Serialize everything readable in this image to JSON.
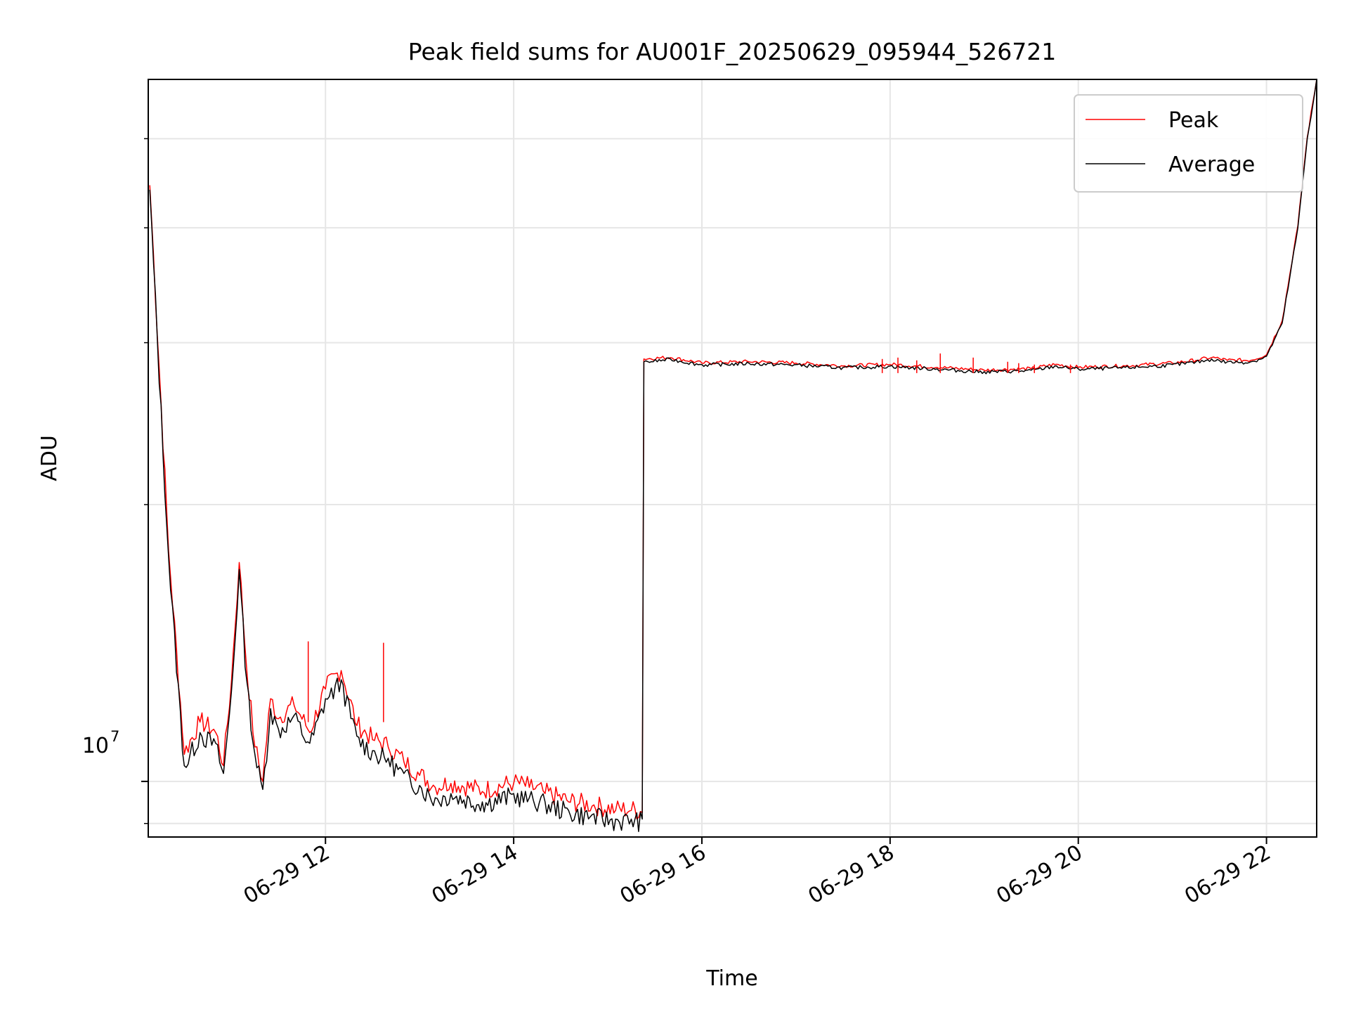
{
  "chart_data": {
    "type": "line",
    "title": "Peak field sums for AU001F_20250629_095944_526721",
    "xlabel": "Time",
    "ylabel": "ADU",
    "y_scale": "log",
    "xlim": [
      "2025-06-29 10:07",
      "2025-06-29 22:32"
    ],
    "ylim": [
      8700000,
      58000000
    ],
    "x_ticks": [
      "06-29 12",
      "06-29 14",
      "06-29 16",
      "06-29 18",
      "06-29 20",
      "06-29 22"
    ],
    "y_tick_label": {
      "base": "10",
      "exp": "7"
    },
    "grid": true,
    "legend": {
      "position": "top-right",
      "entries": [
        "Peak",
        "Average"
      ]
    },
    "colors": {
      "Peak": "#ff0000",
      "Average": "#000000",
      "grid": "#e6e6e6"
    },
    "series": [
      {
        "name": "Average",
        "x": [
          "2025-06-29 10:08",
          "2025-06-29 10:20",
          "2025-06-29 10:30",
          "2025-06-29 10:40",
          "2025-06-29 10:50",
          "2025-06-29 10:55",
          "2025-06-29 11:00",
          "2025-06-29 11:05",
          "2025-06-29 11:10",
          "2025-06-29 11:15",
          "2025-06-29 11:20",
          "2025-06-29 11:25",
          "2025-06-29 11:30",
          "2025-06-29 11:40",
          "2025-06-29 11:50",
          "2025-06-29 12:00",
          "2025-06-29 12:10",
          "2025-06-29 12:20",
          "2025-06-29 12:30",
          "2025-06-29 12:40",
          "2025-06-29 12:50",
          "2025-06-29 13:00",
          "2025-06-29 13:10",
          "2025-06-29 13:20",
          "2025-06-29 13:40",
          "2025-06-29 14:00",
          "2025-06-29 14:10",
          "2025-06-29 14:20",
          "2025-06-29 14:35",
          "2025-06-29 14:50",
          "2025-06-29 15:05",
          "2025-06-29 15:15",
          "2025-06-29 15:22",
          "2025-06-29 15:23",
          "2025-06-29 15:40",
          "2025-06-29 16:00",
          "2025-06-29 16:30",
          "2025-06-29 17:00",
          "2025-06-29 17:30",
          "2025-06-29 18:00",
          "2025-06-29 18:30",
          "2025-06-29 19:00",
          "2025-06-29 19:30",
          "2025-06-29 19:45",
          "2025-06-29 20:00",
          "2025-06-29 20:30",
          "2025-06-29 21:00",
          "2025-06-29 21:15",
          "2025-06-29 21:25",
          "2025-06-29 21:35",
          "2025-06-29 21:50",
          "2025-06-29 22:00",
          "2025-06-29 22:10",
          "2025-06-29 22:20",
          "2025-06-29 22:26",
          "2025-06-29 22:32"
        ],
        "y": [
          44000000,
          17500000,
          10400000,
          11300000,
          11000000,
          10200000,
          12500000,
          17000000,
          12800000,
          10700000,
          9800000,
          12000000,
          11400000,
          11800000,
          11000000,
          12300000,
          12900000,
          11200000,
          10800000,
          10600000,
          10200000,
          9900000,
          9600000,
          9700000,
          9500000,
          9700000,
          9600000,
          9500000,
          9300000,
          9200000,
          9100000,
          9100000,
          9100000,
          28600000,
          28800000,
          28400000,
          28500000,
          28400000,
          28200000,
          28300000,
          28100000,
          27900000,
          28000000,
          28300000,
          28100000,
          28200000,
          28400000,
          28600000,
          28800000,
          28600000,
          28600000,
          29000000,
          31500000,
          40000000,
          50000000,
          58000000
        ]
      },
      {
        "name": "Peak",
        "x": [
          "2025-06-29 10:08",
          "2025-06-29 10:20",
          "2025-06-29 10:30",
          "2025-06-29 10:40",
          "2025-06-29 10:50",
          "2025-06-29 10:55",
          "2025-06-29 11:00",
          "2025-06-29 11:05",
          "2025-06-29 11:10",
          "2025-06-29 11:15",
          "2025-06-29 11:20",
          "2025-06-29 11:25",
          "2025-06-29 11:30",
          "2025-06-29 11:40",
          "2025-06-29 11:50",
          "2025-06-29 12:00",
          "2025-06-29 12:10",
          "2025-06-29 12:20",
          "2025-06-29 12:30",
          "2025-06-29 12:40",
          "2025-06-29 12:50",
          "2025-06-29 13:00",
          "2025-06-29 13:10",
          "2025-06-29 13:20",
          "2025-06-29 13:40",
          "2025-06-29 14:00",
          "2025-06-29 14:10",
          "2025-06-29 14:20",
          "2025-06-29 14:35",
          "2025-06-29 14:50",
          "2025-06-29 15:05",
          "2025-06-29 15:15",
          "2025-06-29 15:22",
          "2025-06-29 15:23",
          "2025-06-29 15:40",
          "2025-06-29 16:00",
          "2025-06-29 16:30",
          "2025-06-29 17:00",
          "2025-06-29 17:30",
          "2025-06-29 18:00",
          "2025-06-29 18:30",
          "2025-06-29 19:00",
          "2025-06-29 19:30",
          "2025-06-29 19:45",
          "2025-06-29 20:00",
          "2025-06-29 20:30",
          "2025-06-29 21:00",
          "2025-06-29 21:15",
          "2025-06-29 21:25",
          "2025-06-29 21:35",
          "2025-06-29 21:50",
          "2025-06-29 22:00",
          "2025-06-29 22:10",
          "2025-06-29 22:20",
          "2025-06-29 22:26",
          "2025-06-29 22:32"
        ],
        "y": [
          44500000,
          17800000,
          10700000,
          11600000,
          11300000,
          10400000,
          12800000,
          17300000,
          13100000,
          10900000,
          10000000,
          12300000,
          11700000,
          12100000,
          11300000,
          12600000,
          13200000,
          11500000,
          11100000,
          10900000,
          10500000,
          10150000,
          9850000,
          9950000,
          9750000,
          9950000,
          9850000,
          9700000,
          9500000,
          9400000,
          9300000,
          9300000,
          9250000,
          28800000,
          28900000,
          28500000,
          28600000,
          28500000,
          28300000,
          28400000,
          28200000,
          28000000,
          28100000,
          28400000,
          28200000,
          28300000,
          28500000,
          28700000,
          28900000,
          28700000,
          28700000,
          29100000,
          31700000,
          40200000,
          50200000,
          58000000
        ]
      }
    ],
    "spikes": {
      "name": "Peak",
      "x": [
        "2025-06-29 11:49",
        "2025-06-29 12:37",
        "2025-06-29 17:55",
        "2025-06-29 18:05",
        "2025-06-29 18:17",
        "2025-06-29 18:32",
        "2025-06-29 18:53",
        "2025-06-29 19:15",
        "2025-06-29 19:22",
        "2025-06-29 19:32",
        "2025-06-29 19:55"
      ],
      "y": [
        14200000,
        14150000,
        28800000,
        28900000,
        28700000,
        29200000,
        28900000,
        28600000,
        28500000,
        28400000,
        28400000
      ]
    }
  }
}
